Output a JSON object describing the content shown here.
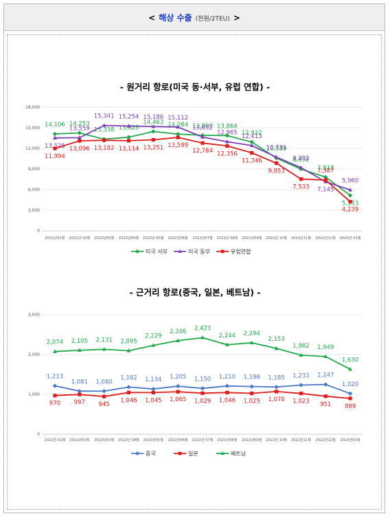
{
  "header": {
    "open": "<",
    "title": "해상 수출",
    "unit": "(천원/2TEU)",
    "close": ">"
  },
  "chart_data": [
    {
      "type": "line",
      "title": "- 원거리 항로(미국 동·서부, 유럽 연합) -",
      "categories": [
        "2022년01월",
        "2022년 02월",
        "2022년03월",
        "2022년04월",
        "2022년 05월",
        "2022년06월",
        "2022년07월",
        "2022년 08월",
        "2022년09월",
        "2022년 10월",
        "2022년11월",
        "2022년12월",
        "2023년 01월"
      ],
      "ylim": [
        0,
        18000
      ],
      "yticks": [
        0,
        3000,
        6000,
        9000,
        12000,
        15000,
        18000
      ],
      "ytick_labels": [
        "0",
        "3,000",
        "6,000",
        "9,000",
        "12,000",
        "15,000",
        "18,000"
      ],
      "grid": true,
      "legend_position": "bottom",
      "series": [
        {
          "name": "미국 서부",
          "color": "#1fa84a",
          "marker": "diamond",
          "values": [
            14106,
            14253,
            13338,
            13628,
            14463,
            14084,
            13908,
            13864,
            12922,
            10589,
            8992,
            7818,
            5153
          ],
          "labels": [
            "14,106",
            "14,253",
            "13,338",
            "13,628",
            "14,463",
            "14,084",
            "13,908",
            "13,864",
            "12,922",
            "10,589",
            "8,992",
            "7,818",
            "5,153"
          ]
        },
        {
          "name": "미국 동부",
          "color": "#7d3fb5",
          "marker": "triangle",
          "values": [
            13525,
            13559,
            15341,
            15254,
            15186,
            15112,
            13652,
            12965,
            12413,
            10731,
            9202,
            7145,
            5960
          ],
          "labels": [
            "13,525",
            "13,559",
            "15,341",
            "15,254",
            "15,186",
            "15,112",
            "13,652",
            "12,965",
            "12,413",
            "10,731",
            "9,202",
            "7,145",
            "5,960"
          ]
        },
        {
          "name": "유럽연합",
          "color": "#e01b1b",
          "marker": "square",
          "values": [
            11994,
            13096,
            13182,
            13114,
            13251,
            13599,
            12784,
            12356,
            11346,
            9853,
            7533,
            7387,
            4239
          ],
          "labels": [
            "11,994",
            "13,096",
            "13,182",
            "13,114",
            "13,251",
            "13,599",
            "12,784",
            "12,356",
            "11,346",
            "9,853",
            "7,533",
            "7,387",
            "4,239"
          ]
        }
      ]
    },
    {
      "type": "line",
      "title": "- 근거리 항로(중국, 일본, 베트남) -",
      "categories": [
        "2022년 01월",
        "2022년02월",
        "2022년03월",
        "2022년 04월",
        "2022년05월",
        "2022년06월",
        "2022년 07월",
        "2022년08월",
        "2022년09월",
        "2022년 10월",
        "2022년11월",
        "2022년12월",
        "2023년01월"
      ],
      "ylim": [
        0,
        3000
      ],
      "yticks": [
        0,
        1000,
        2000,
        3000
      ],
      "ytick_labels": [
        "0",
        "1,000",
        "2,000",
        "3,000"
      ],
      "grid": true,
      "legend_position": "bottom",
      "series": [
        {
          "name": "중국",
          "color": "#4a78c8",
          "marker": "diamond",
          "values": [
            1213,
            1081,
            1080,
            1182,
            1134,
            1205,
            1150,
            1210,
            1196,
            1185,
            1233,
            1247,
            1020
          ],
          "labels": [
            "1,213",
            "1,081",
            "1,080",
            "1,182",
            "1,134",
            "1,205",
            "1,150",
            "1,210",
            "1,196",
            "1,185",
            "1,233",
            "1,247",
            "1,020"
          ]
        },
        {
          "name": "일본",
          "color": "#e01b1b",
          "marker": "square",
          "values": [
            970,
            997,
            945,
            1046,
            1045,
            1065,
            1029,
            1046,
            1025,
            1070,
            1023,
            951,
            899
          ],
          "labels": [
            "970",
            "997",
            "945",
            "1,046",
            "1,045",
            "1,065",
            "1,029",
            "1,046",
            "1,025",
            "1,070",
            "1,023",
            "951",
            "899"
          ]
        },
        {
          "name": "베트남",
          "color": "#1fa84a",
          "marker": "triangle",
          "values": [
            2074,
            2105,
            2131,
            2095,
            2229,
            2346,
            2423,
            2244,
            2294,
            2153,
            1982,
            1949,
            1630
          ],
          "labels": [
            "2,074",
            "2,105",
            "2,131",
            "2,095",
            "2,229",
            "2,346",
            "2,423",
            "2,244",
            "2,294",
            "2,153",
            "1,982",
            "1,949",
            "1,630"
          ]
        }
      ]
    }
  ]
}
